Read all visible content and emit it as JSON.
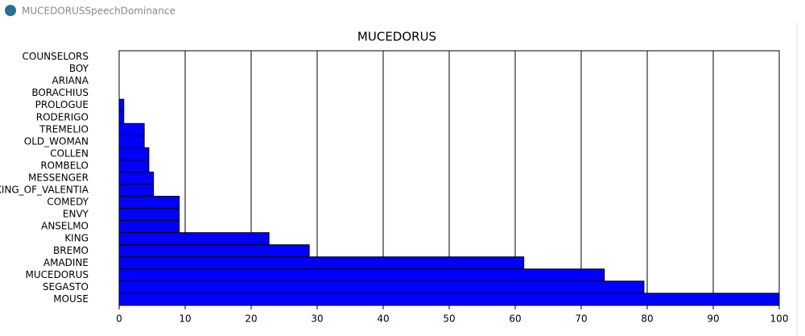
{
  "window_title": "MUCEDORUSSpeechDominance",
  "chart_data": {
    "type": "barh",
    "title": "MUCEDORUS",
    "categories": [
      "COUNSELORS",
      "BOY",
      "ARIANA",
      "BORACHIUS",
      "PROLOGUE",
      "RODERIGO",
      "TREMELIO",
      "OLD_WOMAN",
      "COLLEN",
      "ROMBELO",
      "MESSENGER",
      "KING_OF_VALENTIA",
      "COMEDY",
      "ENVY",
      "ANSELMO",
      "KING",
      "BREMO",
      "AMADINE",
      "MUCEDORUS",
      "SEGASTO",
      "MOUSE"
    ],
    "values": [
      0,
      0,
      0,
      0,
      0.7,
      0.7,
      3.8,
      3.8,
      4.5,
      4.5,
      5.2,
      5.2,
      9.1,
      9.1,
      9.1,
      22.7,
      28.8,
      61.3,
      73.5,
      79.5,
      100
    ],
    "color": "#0000ff",
    "xlim": [
      0,
      100
    ],
    "xticks": [
      0,
      10,
      20,
      30,
      40,
      50,
      60,
      70,
      80,
      90,
      100
    ],
    "grid": true
  }
}
